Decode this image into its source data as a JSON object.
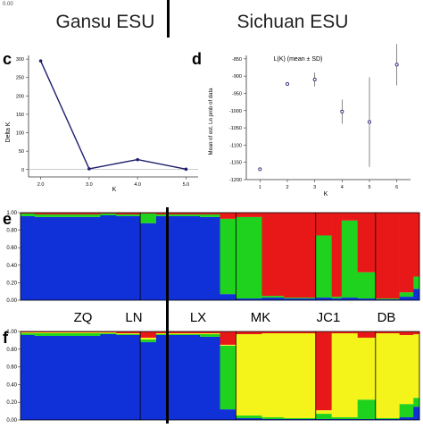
{
  "corner_mark": "0.00",
  "header": {
    "left_group": "Gansu ESU",
    "right_group": "Sichuan ESU"
  },
  "panel_letters": {
    "c": "c",
    "d": "d",
    "e": "e",
    "f": "f"
  },
  "population_labels": [
    "ZQ",
    "LN",
    "LX",
    "MK",
    "JC1",
    "DB"
  ],
  "colors": {
    "delta_line": "#1f1f6e",
    "cluster_blue": "#1030d8",
    "cluster_green": "#1ed21e",
    "cluster_red": "#e81818",
    "cluster_yellow": "#f4f41a",
    "axis": "#333333"
  },
  "chart_data": [
    {
      "id": "panel-c",
      "type": "line",
      "title": "",
      "xlabel": "K",
      "ylabel": "Delta K",
      "x": [
        2,
        3,
        4,
        5
      ],
      "values": [
        295,
        2,
        27,
        1
      ],
      "xlim": [
        1.75,
        5.25
      ],
      "ylim": [
        -20,
        310
      ],
      "xticks": [
        "2.0",
        "3.0",
        "4.0",
        "5.0"
      ],
      "yticks": [
        "0",
        "50",
        "100",
        "150",
        "200",
        "250",
        "300"
      ],
      "baseline": 0
    },
    {
      "id": "panel-d",
      "type": "scatter",
      "title": "L(K) (mean ± SD)",
      "xlabel": "K",
      "ylabel": "Mean of est. Ln prob of data",
      "x": [
        1,
        2,
        3,
        4,
        5,
        6
      ],
      "mean": [
        -1170,
        -923,
        -910,
        -1003,
        -1033,
        -867
      ],
      "sd": [
        0,
        0,
        20,
        35,
        130,
        60
      ],
      "xlim": [
        0.5,
        6.5
      ],
      "ylim": [
        -1200,
        -840
      ],
      "xticks": [
        "1",
        "2",
        "3",
        "4",
        "5",
        "6"
      ],
      "yticks": [
        "-850",
        "-900",
        "-950",
        "-1000",
        "-1050",
        "-1100",
        "-1150",
        "-1200"
      ]
    },
    {
      "id": "panel-e",
      "type": "bar",
      "stacked": true,
      "xlabel": "",
      "ylabel": "",
      "ylim": [
        0,
        1
      ],
      "yticks": [
        "0.00",
        "0.20",
        "0.40",
        "0.60",
        "0.80",
        "1.00"
      ],
      "groups": [
        "ZQ",
        "LN",
        "LX",
        "MK",
        "JC1",
        "DB"
      ],
      "clusters": [
        "blue",
        "green",
        "red"
      ],
      "segments": [
        {
          "x0": 0,
          "x1": 0.035,
          "blue": 0.96,
          "green": 0.03,
          "red": 0.01
        },
        {
          "x0": 0.035,
          "x1": 0.2,
          "blue": 0.95,
          "green": 0.03,
          "red": 0.02
        },
        {
          "x0": 0.2,
          "x1": 0.24,
          "blue": 0.97,
          "green": 0.02,
          "red": 0.01
        },
        {
          "x0": 0.24,
          "x1": 0.3,
          "blue": 0.96,
          "green": 0.02,
          "red": 0.02
        },
        {
          "x0": 0.3,
          "x1": 0.34,
          "blue": 0.88,
          "green": 0.11,
          "red": 0.01
        },
        {
          "x0": 0.34,
          "x1": 0.45,
          "blue": 0.96,
          "green": 0.02,
          "red": 0.02
        },
        {
          "x0": 0.45,
          "x1": 0.5,
          "blue": 0.95,
          "green": 0.03,
          "red": 0.02
        },
        {
          "x0": 0.5,
          "x1": 0.54,
          "blue": 0.07,
          "green": 0.86,
          "red": 0.07
        },
        {
          "x0": 0.54,
          "x1": 0.605,
          "blue": 0.02,
          "green": 0.93,
          "red": 0.05
        },
        {
          "x0": 0.605,
          "x1": 0.66,
          "blue": 0.03,
          "green": 0.02,
          "red": 0.95
        },
        {
          "x0": 0.66,
          "x1": 0.74,
          "blue": 0.02,
          "green": 0.01,
          "red": 0.97
        },
        {
          "x0": 0.74,
          "x1": 0.78,
          "blue": 0.03,
          "green": 0.71,
          "red": 0.26
        },
        {
          "x0": 0.78,
          "x1": 0.805,
          "blue": 0.02,
          "green": 0.02,
          "red": 0.96
        },
        {
          "x0": 0.805,
          "x1": 0.845,
          "blue": 0.03,
          "green": 0.88,
          "red": 0.09
        },
        {
          "x0": 0.845,
          "x1": 0.89,
          "blue": 0.02,
          "green": 0.3,
          "red": 0.68
        },
        {
          "x0": 0.89,
          "x1": 0.95,
          "blue": 0.01,
          "green": 0.01,
          "red": 0.98
        },
        {
          "x0": 0.95,
          "x1": 0.985,
          "blue": 0.04,
          "green": 0.05,
          "red": 0.91
        },
        {
          "x0": 0.985,
          "x1": 1,
          "blue": 0.13,
          "green": 0.14,
          "red": 0.73
        }
      ]
    },
    {
      "id": "panel-f",
      "type": "bar",
      "stacked": true,
      "xlabel": "",
      "ylabel": "",
      "ylim": [
        0,
        1
      ],
      "yticks": [
        "0.00",
        "0.20",
        "0.40",
        "0.60",
        "0.80",
        "1.00"
      ],
      "groups": [
        "ZQ",
        "LN",
        "LX",
        "MK",
        "JC1",
        "DB"
      ],
      "clusters": [
        "blue",
        "green",
        "yellow",
        "red"
      ],
      "segments": [
        {
          "x0": 0,
          "x1": 0.035,
          "blue": 0.96,
          "green": 0.02,
          "yellow": 0.01,
          "red": 0.01
        },
        {
          "x0": 0.035,
          "x1": 0.2,
          "blue": 0.95,
          "green": 0.03,
          "yellow": 0.01,
          "red": 0.01
        },
        {
          "x0": 0.2,
          "x1": 0.24,
          "blue": 0.97,
          "green": 0.01,
          "yellow": 0.01,
          "red": 0.01
        },
        {
          "x0": 0.24,
          "x1": 0.3,
          "blue": 0.96,
          "green": 0.01,
          "yellow": 0.01,
          "red": 0.02
        },
        {
          "x0": 0.3,
          "x1": 0.34,
          "blue": 0.88,
          "green": 0.03,
          "yellow": 0.02,
          "red": 0.07
        },
        {
          "x0": 0.34,
          "x1": 0.45,
          "blue": 0.96,
          "green": 0.01,
          "yellow": 0.01,
          "red": 0.02
        },
        {
          "x0": 0.45,
          "x1": 0.5,
          "blue": 0.94,
          "green": 0.03,
          "yellow": 0.01,
          "red": 0.02
        },
        {
          "x0": 0.5,
          "x1": 0.54,
          "blue": 0.12,
          "green": 0.72,
          "yellow": 0.01,
          "red": 0.15
        },
        {
          "x0": 0.54,
          "x1": 0.605,
          "blue": 0.02,
          "green": 0.03,
          "yellow": 0.92,
          "red": 0.03
        },
        {
          "x0": 0.605,
          "x1": 0.66,
          "blue": 0.01,
          "green": 0.02,
          "yellow": 0.95,
          "red": 0.02
        },
        {
          "x0": 0.66,
          "x1": 0.74,
          "blue": 0.01,
          "green": 0.01,
          "yellow": 0.96,
          "red": 0.02
        },
        {
          "x0": 0.74,
          "x1": 0.78,
          "blue": 0.01,
          "green": 0.06,
          "yellow": 0.04,
          "red": 0.89
        },
        {
          "x0": 0.78,
          "x1": 0.805,
          "blue": 0.01,
          "green": 0.02,
          "yellow": 0.95,
          "red": 0.02
        },
        {
          "x0": 0.805,
          "x1": 0.845,
          "blue": 0.01,
          "green": 0.02,
          "yellow": 0.95,
          "red": 0.02
        },
        {
          "x0": 0.845,
          "x1": 0.89,
          "blue": 0.01,
          "green": 0.22,
          "yellow": 0.7,
          "red": 0.07
        },
        {
          "x0": 0.89,
          "x1": 0.95,
          "blue": 0.01,
          "green": 0.01,
          "yellow": 0.96,
          "red": 0.02
        },
        {
          "x0": 0.95,
          "x1": 0.985,
          "blue": 0.03,
          "green": 0.15,
          "yellow": 0.78,
          "red": 0.04
        },
        {
          "x0": 0.985,
          "x1": 1,
          "blue": 0.15,
          "green": 0.1,
          "yellow": 0.72,
          "red": 0.03
        }
      ]
    }
  ]
}
